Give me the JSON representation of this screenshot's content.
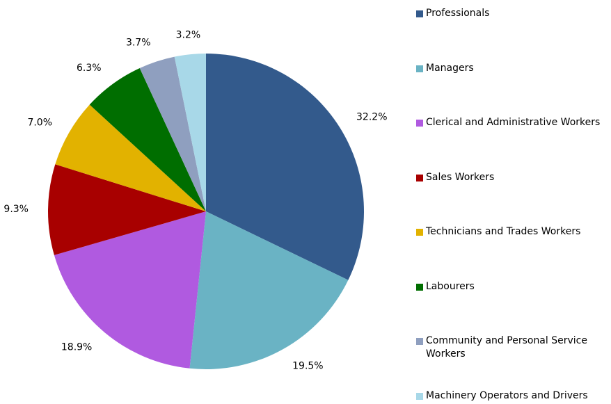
{
  "chart_data": {
    "type": "pie",
    "categories": [
      "Professionals",
      "Managers",
      "Clerical and Administrative Workers",
      "Sales Workers",
      "Technicians and Trades Workers",
      "Labourers",
      "Community and Personal Service Workers",
      "Machinery Operators and Drivers"
    ],
    "values": [
      32.2,
      19.5,
      18.9,
      9.3,
      7.0,
      6.3,
      3.7,
      3.2
    ],
    "value_labels": [
      "32.2%",
      "19.5%",
      "18.9%",
      "9.3%",
      "7.0%",
      "6.3%",
      "3.7%",
      "3.2%"
    ],
    "colors": [
      "#335a8c",
      "#6ab3c4",
      "#b05ae0",
      "#a80000",
      "#e2b200",
      "#006e00",
      "#8f9fbf",
      "#a8d8e8"
    ],
    "legend": "right"
  }
}
